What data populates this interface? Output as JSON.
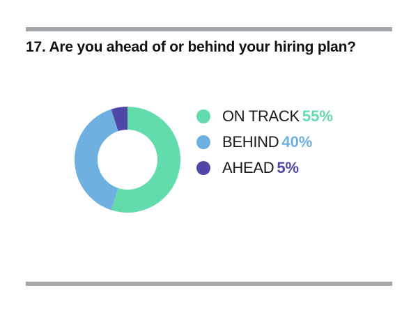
{
  "chart_data": {
    "type": "pie",
    "title": "17. Are you ahead of or behind your hiring plan?",
    "donut": true,
    "series": [
      {
        "label": "ON TRACK",
        "value": 55,
        "display": "55%",
        "color": "#63dcab"
      },
      {
        "label": "BEHIND",
        "value": 40,
        "display": "40%",
        "color": "#6eb0e0"
      },
      {
        "label": "AHEAD",
        "value": 5,
        "display": "5%",
        "color": "#4f47a8"
      }
    ],
    "legend": "right"
  }
}
